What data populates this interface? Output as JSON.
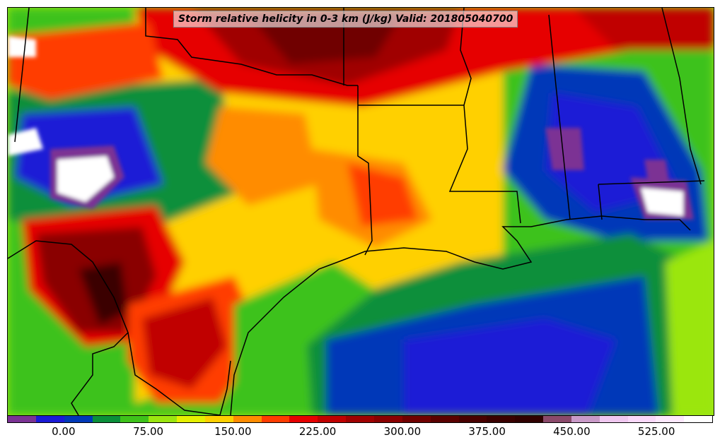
{
  "title": "Storm relative helicity in 0-3 km (J/kg) Valid: 201805040700",
  "colorbar": {
    "min": -50,
    "max": 575,
    "step": 25,
    "colors": [
      "#7b3294",
      "#1a1ad6",
      "#0038b8",
      "#0a8f3a",
      "#3ec21a",
      "#9be60f",
      "#e6f000",
      "#ffd000",
      "#ff8c00",
      "#ff3c00",
      "#e60000",
      "#c00000",
      "#a00000",
      "#8a0000",
      "#700000",
      "#5a0000",
      "#480000",
      "#3a0000",
      "#300000",
      "#8b4a6b",
      "#c99ac8",
      "#f0c8f0",
      "#fad8fa",
      "#fde8fd",
      "#ffffff"
    ],
    "tick_values": [
      "0.00",
      "75.00",
      "150.00",
      "225.00",
      "300.00",
      "375.00",
      "450.00",
      "525.00"
    ],
    "tick_positions_value": [
      0,
      75,
      150,
      225,
      300,
      375,
      450,
      525
    ]
  },
  "map": {
    "region": "South-central United States and Gulf of Mexico",
    "icon": "contour-map"
  }
}
